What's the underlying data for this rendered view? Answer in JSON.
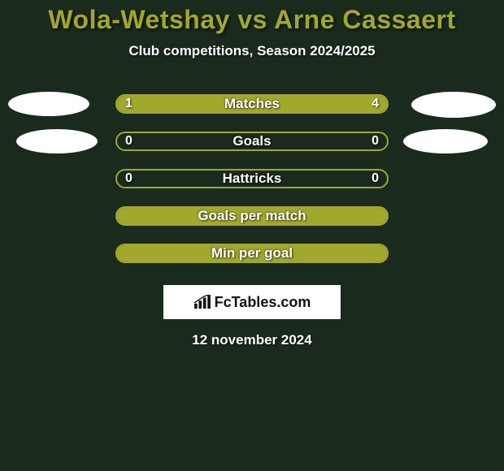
{
  "title": "Wola-Wetshay vs Arne Cassaert",
  "subtitle": "Club competitions, Season 2024/2025",
  "date": "12 november 2024",
  "logo_text": "FcTables.com",
  "colors": {
    "background": "#1a2a1c",
    "accent": "#a0a82e",
    "text_light": "#ffffff",
    "logo_bg": "#ffffff",
    "logo_text": "#111111"
  },
  "layout": {
    "bar_track_width": 336,
    "bar_track_height": 24,
    "bar_border_radius": 12,
    "title_fontsize": 32,
    "subtitle_fontsize": 17,
    "label_fontsize": 17,
    "value_fontsize": 16
  },
  "stats": [
    {
      "label": "Matches",
      "left_val": "1",
      "right_val": "4",
      "left_pct": 20,
      "right_pct": 80,
      "show_ovals": true,
      "oval_left_class": "oval-tl",
      "oval_right_class": "oval-tr"
    },
    {
      "label": "Goals",
      "left_val": "0",
      "right_val": "0",
      "left_pct": 0,
      "right_pct": 0,
      "show_ovals": true,
      "oval_left_class": "oval-bl",
      "oval_right_class": "oval-br"
    },
    {
      "label": "Hattricks",
      "left_val": "0",
      "right_val": "0",
      "left_pct": 0,
      "right_pct": 0,
      "show_ovals": false
    },
    {
      "label": "Goals per match",
      "left_val": "",
      "right_val": "",
      "left_pct": 100,
      "right_pct": 0,
      "show_ovals": false
    },
    {
      "label": "Min per goal",
      "left_val": "",
      "right_val": "",
      "left_pct": 100,
      "right_pct": 0,
      "show_ovals": false
    }
  ]
}
